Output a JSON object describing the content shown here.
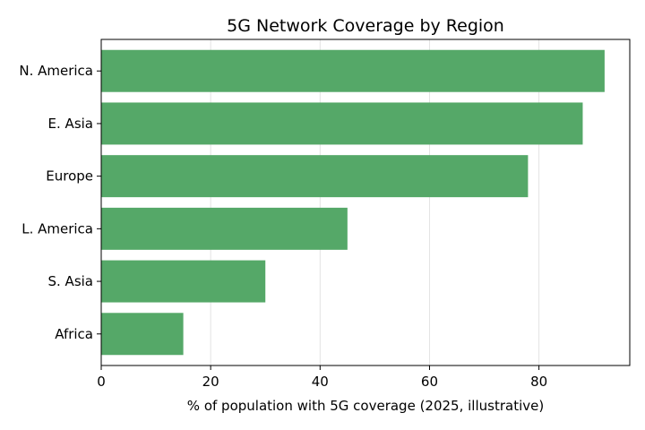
{
  "chart_data": {
    "type": "bar",
    "orientation": "horizontal",
    "title": "5G Network Coverage by Region",
    "xlabel": "% of population with 5G coverage (2025, illustrative)",
    "ylabel": "",
    "categories": [
      "N. America",
      "E. Asia",
      "Europe",
      "L. America",
      "S. Asia",
      "Africa"
    ],
    "values": [
      92,
      88,
      78,
      45,
      30,
      15
    ],
    "xlim": [
      0,
      96.6
    ],
    "xticks": [
      0,
      20,
      40,
      60,
      80
    ],
    "xtick_labels": [
      "0",
      "20",
      "40",
      "60",
      "80"
    ],
    "grid": "vertical",
    "legend": "none",
    "bar_color": "#55a868"
  }
}
